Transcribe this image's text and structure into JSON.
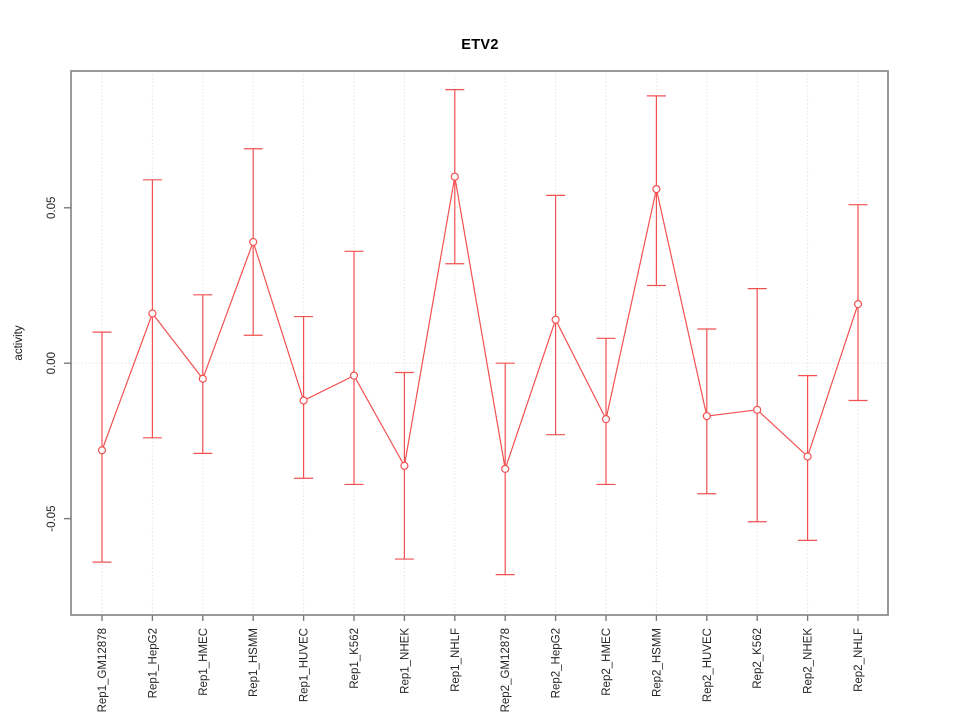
{
  "window": {
    "background": "#ffffff"
  },
  "chart_data": {
    "type": "line",
    "subtype": "point-estimates-with-error-bars",
    "title": "ETV2",
    "xlabel": "",
    "ylabel": "activity",
    "legend": "none",
    "marker": "open-circle",
    "grid": {
      "vertical": "dotted line at every category",
      "horizontal": "dotted line at y = 0 only"
    },
    "ylim": [
      -0.081,
      0.094
    ],
    "yticks": [
      -0.05,
      0,
      0.05
    ],
    "ytick_labels": [
      "-0.05",
      "0.00",
      "0.05"
    ],
    "categories": [
      "Rep1_GM12878",
      "Rep1_HepG2",
      "Rep1_HMEC",
      "Rep1_HSMM",
      "Rep1_HUVEC",
      "Rep1_K562",
      "Rep1_NHEK",
      "Rep1_NHLF",
      "Rep2_GM12878",
      "Rep2_HepG2",
      "Rep2_HMEC",
      "Rep2_HSMM",
      "Rep2_HUVEC",
      "Rep2_K562",
      "Rep2_NHEK",
      "Rep2_NHLF"
    ],
    "series": [
      {
        "name": "ETV2 activity",
        "values": [
          -0.028,
          0.016,
          -0.005,
          0.039,
          -0.012,
          -0.004,
          -0.033,
          0.06,
          -0.034,
          0.014,
          -0.018,
          0.056,
          -0.017,
          -0.015,
          -0.03,
          0.019
        ],
        "upper": [
          0.01,
          0.059,
          0.022,
          0.069,
          0.015,
          0.036,
          -0.003,
          0.088,
          0.0,
          0.054,
          0.008,
          0.086,
          0.011,
          0.024,
          -0.004,
          0.051
        ],
        "lower": [
          -0.064,
          -0.024,
          -0.029,
          0.009,
          -0.037,
          -0.039,
          -0.063,
          0.032,
          -0.068,
          -0.023,
          -0.039,
          0.025,
          -0.042,
          -0.051,
          -0.057,
          -0.012
        ]
      }
    ],
    "colors": {
      "series": "#f25151",
      "grid": "#d9d9d9",
      "box": "#8f8f8f",
      "tick": "#7a7a7a",
      "text": "#262626",
      "title": "#000000"
    }
  }
}
